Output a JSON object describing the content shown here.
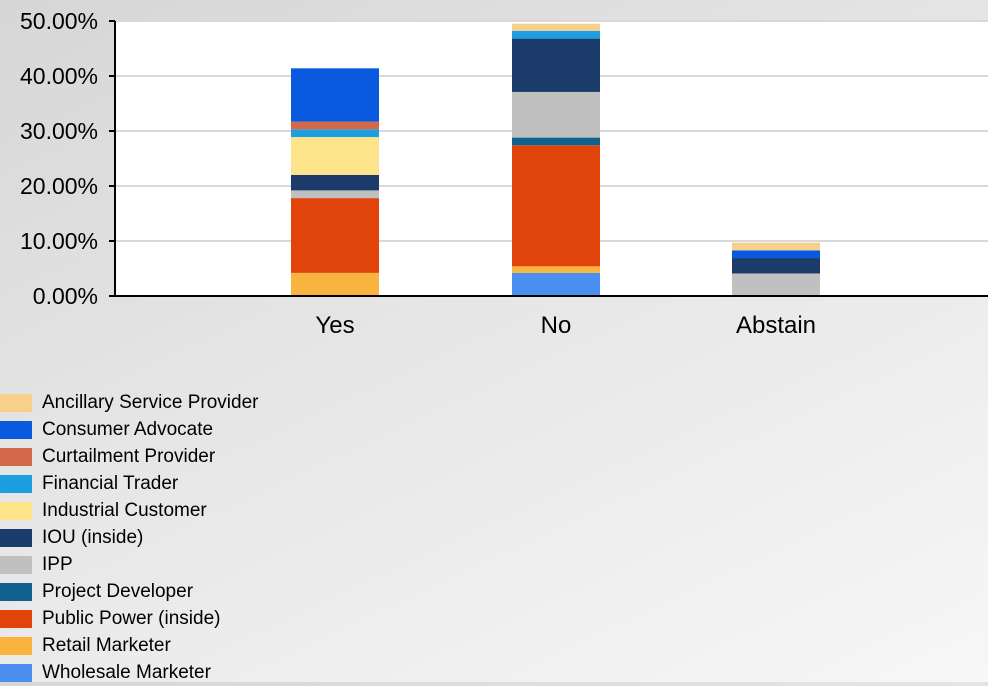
{
  "chart_data": {
    "type": "bar",
    "stacked": true,
    "categories": [
      "Yes",
      "No",
      "Abstain"
    ],
    "ylim": [
      0,
      50
    ],
    "yticks": [
      0,
      10,
      20,
      30,
      40,
      50
    ],
    "ytick_labels": [
      "0.00%",
      "10.00%",
      "20.00%",
      "30.00%",
      "40.00%",
      "50.00%"
    ],
    "y_unit": "%",
    "grid": true,
    "legend_position": "bottom-left",
    "series": [
      {
        "name": "Wholesale Marketer",
        "color": "#4a8ff0",
        "values": [
          0,
          4.2,
          0
        ]
      },
      {
        "name": "Retail Marketer",
        "color": "#f9b440",
        "values": [
          4.2,
          1.2,
          0
        ]
      },
      {
        "name": "Public Power (inside)",
        "color": "#e0440a",
        "values": [
          13.6,
          22.0,
          0
        ]
      },
      {
        "name": "Project Developer",
        "color": "#11618f",
        "values": [
          0,
          1.4,
          0
        ]
      },
      {
        "name": "IPP",
        "color": "#c0c0c0",
        "values": [
          1.4,
          8.3,
          4.1
        ]
      },
      {
        "name": "IOU (inside)",
        "color": "#1b3b6b",
        "values": [
          2.8,
          9.7,
          2.8
        ]
      },
      {
        "name": "Industrial Customer",
        "color": "#fde38a",
        "values": [
          6.9,
          0,
          0
        ]
      },
      {
        "name": "Financial Trader",
        "color": "#1c9ee0",
        "values": [
          1.4,
          1.4,
          0
        ]
      },
      {
        "name": "Curtailment Provider",
        "color": "#d4694a",
        "values": [
          1.4,
          0,
          0
        ]
      },
      {
        "name": "Consumer Advocate",
        "color": "#0a5ae0",
        "values": [
          9.7,
          0,
          1.4
        ]
      },
      {
        "name": "Ancillary Service Provider",
        "color": "#f7d08c",
        "values": [
          0,
          1.3,
          1.4
        ]
      }
    ],
    "legend_order": [
      "Ancillary Service Provider",
      "Consumer Advocate",
      "Curtailment Provider",
      "Financial Trader",
      "Industrial Customer",
      "IOU (inside)",
      "IPP",
      "Project Developer",
      "Public Power (inside)",
      "Retail Marketer",
      "Wholesale Marketer"
    ]
  }
}
